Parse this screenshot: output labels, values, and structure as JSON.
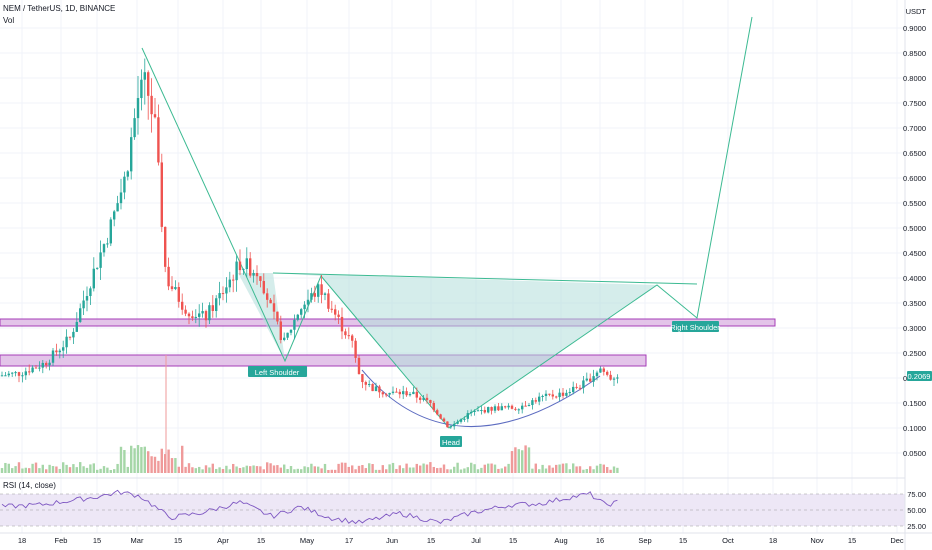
{
  "header": {
    "symbol_line": "NEM / TetherUS, 1D, BINANCE",
    "volume_label": "Vol",
    "rsi_label": "RSI (14, close)",
    "currency": "USDT"
  },
  "price_axis": {
    "ticks": [
      "0.9000",
      "0.8500",
      "0.8000",
      "0.7500",
      "0.7000",
      "0.6500",
      "0.6000",
      "0.5500",
      "0.5000",
      "0.4500",
      "0.4000",
      "0.3500",
      "0.3000",
      "0.2500",
      "0.2000",
      "0.1500",
      "0.1000",
      "0.0500"
    ],
    "last_price": "0.2069"
  },
  "rsi_axis": {
    "ticks": [
      "75.00",
      "50.00",
      "25.00"
    ]
  },
  "time_axis": {
    "ticks": [
      "18",
      "Feb",
      "15",
      "Mar",
      "15",
      "Apr",
      "15",
      "May",
      "17",
      "Jun",
      "15",
      "Jul",
      "15",
      "Aug",
      "16",
      "Sep",
      "15",
      "Oct",
      "18",
      "Nov",
      "15",
      "Dec"
    ]
  },
  "annotations": {
    "left_shoulder": "Left Shoulder",
    "head": "Head",
    "right_shoulder": "Right Shoulder"
  },
  "colors": {
    "up": "#26a69a",
    "down": "#ef5350",
    "pattern_line": "#3cba92",
    "pattern_fill": "#b2dfdb",
    "zone_fill": "#e1bee7",
    "zone_border": "#9c27b0",
    "head_curve": "#5c6bc0",
    "rsi_line": "#7e57c2",
    "rsi_band": "#ede7f6"
  },
  "chart_data": {
    "type": "candlestick",
    "title": "NEM / TetherUS, 1D, BINANCE",
    "ylim": [
      0.0,
      0.95
    ],
    "price_series_approx": [
      {
        "date": "Jan 18",
        "close": 0.21
      },
      {
        "date": "Feb 01",
        "close": 0.24
      },
      {
        "date": "Feb 15",
        "close": 0.41
      },
      {
        "date": "Mar 01",
        "close": 0.79
      },
      {
        "date": "Mar 15",
        "close": 0.4
      },
      {
        "date": "Apr 01",
        "close": 0.33
      },
      {
        "date": "Apr 15",
        "close": 0.42
      },
      {
        "date": "Apr 25",
        "close": 0.28
      },
      {
        "date": "May 03",
        "close": 0.39
      },
      {
        "date": "May 17",
        "close": 0.3
      },
      {
        "date": "Jun 01",
        "close": 0.19
      },
      {
        "date": "Jun 15",
        "close": 0.17
      },
      {
        "date": "Jun 24",
        "close": 0.11
      },
      {
        "date": "Jul 15",
        "close": 0.13
      },
      {
        "date": "Aug 01",
        "close": 0.17
      },
      {
        "date": "Aug 16",
        "close": 0.22
      },
      {
        "date": "Aug 23",
        "close": 0.2069
      }
    ],
    "zones": [
      {
        "low": 0.305,
        "high": 0.318
      },
      {
        "low": 0.228,
        "high": 0.247
      }
    ],
    "rsi_last_approx": 62
  }
}
